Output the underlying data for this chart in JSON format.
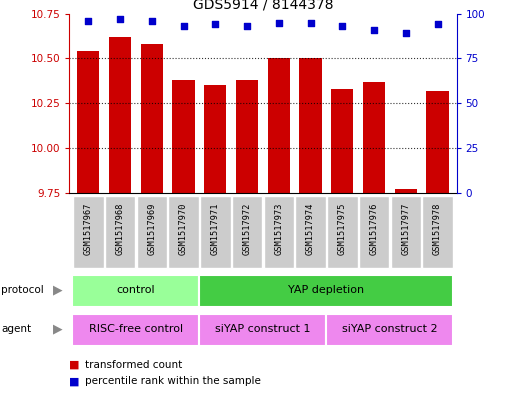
{
  "title": "GDS5914 / 8144378",
  "samples": [
    "GSM1517967",
    "GSM1517968",
    "GSM1517969",
    "GSM1517970",
    "GSM1517971",
    "GSM1517972",
    "GSM1517973",
    "GSM1517974",
    "GSM1517975",
    "GSM1517976",
    "GSM1517977",
    "GSM1517978"
  ],
  "bar_values": [
    10.54,
    10.62,
    10.58,
    10.38,
    10.35,
    10.38,
    10.5,
    10.5,
    10.33,
    10.37,
    9.77,
    10.32
  ],
  "percentile_values": [
    96,
    97,
    96,
    93,
    94,
    93,
    95,
    95,
    93,
    91,
    89,
    94
  ],
  "bar_color": "#cc0000",
  "percentile_color": "#0000cc",
  "ylim_left": [
    9.75,
    10.75
  ],
  "ylim_right": [
    0,
    100
  ],
  "yticks_left": [
    9.75,
    10.0,
    10.25,
    10.5,
    10.75
  ],
  "yticks_right": [
    0,
    25,
    50,
    75,
    100
  ],
  "protocol_color": "#99ff99",
  "protocol_color2": "#44cc44",
  "agent_color": "#ee88ee",
  "legend_red": "transformed count",
  "legend_blue": "percentile rank within the sample",
  "panel_bg": "#ffffff",
  "label_box_color": "#cccccc",
  "prot_spans": [
    [
      0,
      3,
      "control"
    ],
    [
      4,
      11,
      "YAP depletion"
    ]
  ],
  "agent_spans": [
    [
      0,
      3,
      "RISC-free control"
    ],
    [
      4,
      7,
      "siYAP construct 1"
    ],
    [
      8,
      11,
      "siYAP construct 2"
    ]
  ]
}
